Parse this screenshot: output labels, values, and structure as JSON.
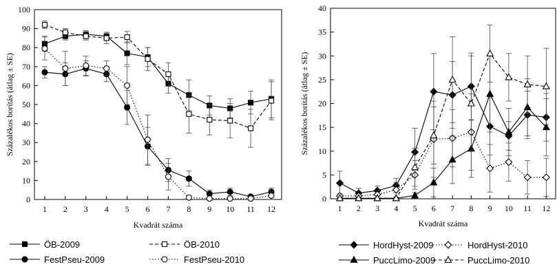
{
  "chart_data": [
    {
      "type": "line",
      "xlabel": "Kvadrát száma",
      "ylabel": "Százalékos borítás (átlag ± SE)",
      "xlim": [
        0.5,
        12.5
      ],
      "ylim": [
        0,
        100
      ],
      "x": [
        1,
        2,
        3,
        4,
        5,
        6,
        7,
        8,
        9,
        10,
        11,
        12
      ],
      "yticks": [
        0,
        10,
        20,
        30,
        40,
        50,
        60,
        70,
        80,
        90,
        100
      ],
      "legend_position": "bottom",
      "series": [
        {
          "name": "ÖB-2009",
          "marker": "square-filled",
          "line": "solid",
          "color": "#000000",
          "values": [
            82,
            86,
            87,
            86,
            77,
            75,
            61,
            55,
            49.5,
            48,
            51,
            53
          ],
          "errors": [
            4,
            2,
            2,
            2,
            6,
            5,
            5,
            8,
            5,
            5,
            6,
            10
          ]
        },
        {
          "name": "ÖB-2010",
          "marker": "square-open",
          "line": "dashed",
          "color": "#000000",
          "values": [
            92,
            88,
            86,
            85,
            85.5,
            74,
            66,
            45,
            42,
            41.5,
            37.5,
            52
          ],
          "errors": [
            2,
            2,
            2,
            3,
            3,
            6,
            6,
            10,
            8,
            9,
            10,
            10
          ]
        },
        {
          "name": "FestPseu-2009",
          "marker": "circle-filled",
          "line": "solid",
          "color": "#000000",
          "values": [
            67,
            66,
            69,
            66,
            48.5,
            28,
            15.5,
            11,
            3,
            4,
            1.5,
            4
          ],
          "errors": [
            3,
            6,
            4,
            4,
            9,
            10,
            6,
            4,
            2,
            2,
            1,
            2
          ]
        },
        {
          "name": "FestPseu-2010",
          "marker": "circle-open",
          "line": "dotted",
          "color": "#000000",
          "values": [
            79.5,
            69,
            70.5,
            69,
            60,
            31.5,
            12,
            1,
            0.5,
            0.5,
            0.5,
            2
          ],
          "errors": [
            6,
            9,
            5,
            4,
            10,
            13,
            7,
            1,
            0.5,
            0.5,
            0.5,
            2
          ]
        }
      ]
    },
    {
      "type": "line",
      "xlabel": "Kvadrát száma",
      "ylabel": "Százalékos borítás (átlag ± SE)",
      "xlim": [
        0.5,
        12.5
      ],
      "ylim": [
        0,
        40
      ],
      "x": [
        1,
        2,
        3,
        4,
        5,
        6,
        7,
        8,
        9,
        10,
        11,
        12
      ],
      "yticks": [
        0,
        5,
        10,
        15,
        20,
        25,
        30,
        35,
        40
      ],
      "legend_position": "bottom",
      "series": [
        {
          "name": "HordHyst-2009",
          "marker": "diamond-filled",
          "line": "solid",
          "color": "#000000",
          "values": [
            3.3,
            1.2,
            1.7,
            2.8,
            9.8,
            22.5,
            21.8,
            23.6,
            15.2,
            13.2,
            17.6,
            17.1
          ],
          "errors": [
            2.5,
            1,
            1,
            1.5,
            5,
            8,
            7,
            7,
            6,
            3,
            5,
            5
          ]
        },
        {
          "name": "HordHyst-2010",
          "marker": "diamond-open",
          "line": "dotted",
          "color": "#000000",
          "values": [
            0.6,
            0.6,
            0.9,
            1.9,
            5,
            12.5,
            12.7,
            14,
            6.4,
            7.7,
            4.5,
            4.5
          ],
          "errors": [
            0.5,
            0.5,
            0.8,
            1.5,
            3,
            8,
            6,
            8,
            5,
            4,
            3.5,
            4
          ]
        },
        {
          "name": "PuccLimo-2009",
          "marker": "triangle-filled",
          "line": "solid",
          "color": "#000000",
          "values": [
            0.1,
            0.1,
            0.1,
            0.1,
            0.7,
            3.4,
            8.2,
            10.5,
            22,
            14,
            19.2,
            15
          ],
          "errors": [
            0.1,
            0.1,
            0.1,
            0.1,
            0.6,
            3,
            5,
            6,
            8,
            5,
            6,
            6
          ]
        },
        {
          "name": "PuccLimo-2010",
          "marker": "triangle-open",
          "line": "dashed",
          "color": "#000000",
          "values": [
            0.1,
            0.1,
            0.1,
            0.1,
            6.6,
            13.3,
            25,
            20,
            30.5,
            25.5,
            24,
            23.6
          ],
          "errors": [
            0.1,
            0.1,
            0.1,
            0.1,
            4,
            6,
            9,
            10,
            6,
            5,
            6,
            8
          ]
        }
      ]
    }
  ]
}
